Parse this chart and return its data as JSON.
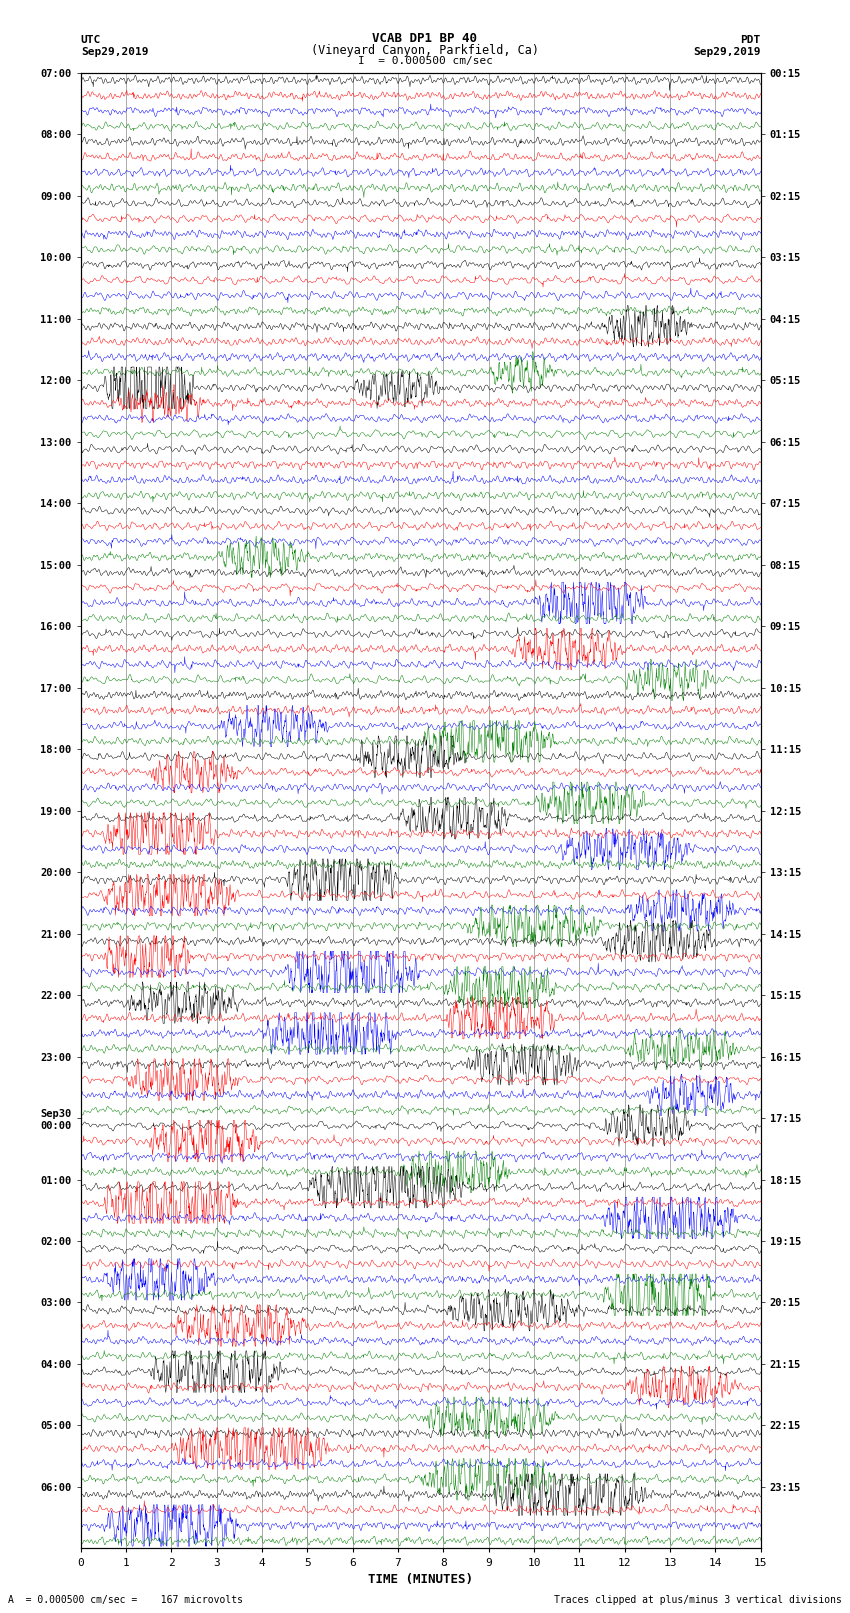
{
  "title_line1": "VCAB DP1 BP 40",
  "title_line2": "(Vineyard Canyon, Parkfield, Ca)",
  "scale_label": "I  = 0.000500 cm/sec",
  "label_utc": "UTC",
  "label_pdt": "PDT",
  "date_left": "Sep29,2019",
  "date_right": "Sep29,2019",
  "xlabel": "TIME (MINUTES)",
  "footer_left": "A  = 0.000500 cm/sec =    167 microvolts",
  "footer_right": "Traces clipped at plus/minus 3 vertical divisions",
  "background_color": "#ffffff",
  "colors": [
    "black",
    "red",
    "blue",
    "green"
  ],
  "xlim": [
    0,
    15
  ],
  "xlabel_ticks": [
    0,
    1,
    2,
    3,
    4,
    5,
    6,
    7,
    8,
    9,
    10,
    11,
    12,
    13,
    14,
    15
  ],
  "utc_times": [
    "07:00",
    "08:00",
    "09:00",
    "10:00",
    "11:00",
    "12:00",
    "13:00",
    "14:00",
    "15:00",
    "16:00",
    "17:00",
    "18:00",
    "19:00",
    "20:00",
    "21:00",
    "22:00",
    "23:00",
    "Sep30\n00:00",
    "01:00",
    "02:00",
    "03:00",
    "04:00",
    "05:00",
    "06:00"
  ],
  "pdt_times": [
    "00:15",
    "01:15",
    "02:15",
    "03:15",
    "04:15",
    "05:15",
    "06:15",
    "07:15",
    "08:15",
    "09:15",
    "10:15",
    "11:15",
    "12:15",
    "13:15",
    "14:15",
    "15:15",
    "16:15",
    "17:15",
    "18:15",
    "19:15",
    "20:15",
    "21:15",
    "22:15",
    "23:15"
  ],
  "n_hours": 24,
  "noise_amp": 0.12,
  "event_base_amp": 0.45,
  "seismic_events": [
    {
      "hour": 4,
      "trace": 0,
      "ms": 11.5,
      "me": 13.5,
      "amp": 1.8
    },
    {
      "hour": 4,
      "trace": 3,
      "ms": 9.0,
      "me": 10.5,
      "amp": 1.4
    },
    {
      "hour": 5,
      "trace": 0,
      "ms": 0.5,
      "me": 2.5,
      "amp": 4.5
    },
    {
      "hour": 5,
      "trace": 0,
      "ms": 6.0,
      "me": 8.0,
      "amp": 1.5
    },
    {
      "hour": 5,
      "trace": 1,
      "ms": 0.8,
      "me": 2.8,
      "amp": 1.2
    },
    {
      "hour": 7,
      "trace": 3,
      "ms": 3.0,
      "me": 5.0,
      "amp": 1.6
    },
    {
      "hour": 8,
      "trace": 2,
      "ms": 10.0,
      "me": 12.5,
      "amp": 2.5
    },
    {
      "hour": 9,
      "trace": 1,
      "ms": 9.5,
      "me": 12.0,
      "amp": 1.8
    },
    {
      "hour": 9,
      "trace": 3,
      "ms": 12.0,
      "me": 14.0,
      "amp": 1.5
    },
    {
      "hour": 10,
      "trace": 2,
      "ms": 3.0,
      "me": 5.5,
      "amp": 1.6
    },
    {
      "hour": 10,
      "trace": 3,
      "ms": 7.5,
      "me": 10.5,
      "amp": 2.5
    },
    {
      "hour": 11,
      "trace": 1,
      "ms": 1.5,
      "me": 3.5,
      "amp": 1.8
    },
    {
      "hour": 11,
      "trace": 0,
      "ms": 6.0,
      "me": 8.5,
      "amp": 2.0
    },
    {
      "hour": 11,
      "trace": 3,
      "ms": 10.0,
      "me": 12.5,
      "amp": 2.2
    },
    {
      "hour": 12,
      "trace": 1,
      "ms": 0.5,
      "me": 3.0,
      "amp": 2.5
    },
    {
      "hour": 12,
      "trace": 0,
      "ms": 7.0,
      "me": 9.5,
      "amp": 2.0
    },
    {
      "hour": 12,
      "trace": 2,
      "ms": 10.5,
      "me": 13.5,
      "amp": 1.8
    },
    {
      "hour": 13,
      "trace": 1,
      "ms": 0.5,
      "me": 3.5,
      "amp": 2.2
    },
    {
      "hour": 13,
      "trace": 0,
      "ms": 4.5,
      "me": 7.0,
      "amp": 2.8
    },
    {
      "hour": 13,
      "trace": 3,
      "ms": 8.5,
      "me": 11.5,
      "amp": 2.0
    },
    {
      "hour": 13,
      "trace": 2,
      "ms": 12.0,
      "me": 14.5,
      "amp": 1.8
    },
    {
      "hour": 14,
      "trace": 1,
      "ms": 0.5,
      "me": 2.5,
      "amp": 2.5
    },
    {
      "hour": 14,
      "trace": 2,
      "ms": 4.5,
      "me": 7.5,
      "amp": 3.0
    },
    {
      "hour": 14,
      "trace": 3,
      "ms": 8.0,
      "me": 10.5,
      "amp": 2.2
    },
    {
      "hour": 14,
      "trace": 0,
      "ms": 11.5,
      "me": 14.0,
      "amp": 1.8
    },
    {
      "hour": 15,
      "trace": 0,
      "ms": 1.0,
      "me": 3.5,
      "amp": 2.0
    },
    {
      "hour": 15,
      "trace": 2,
      "ms": 4.0,
      "me": 7.0,
      "amp": 2.8
    },
    {
      "hour": 15,
      "trace": 1,
      "ms": 8.0,
      "me": 10.5,
      "amp": 2.5
    },
    {
      "hour": 15,
      "trace": 3,
      "ms": 12.0,
      "me": 14.5,
      "amp": 1.6
    },
    {
      "hour": 16,
      "trace": 1,
      "ms": 1.0,
      "me": 3.5,
      "amp": 2.2
    },
    {
      "hour": 16,
      "trace": 0,
      "ms": 8.5,
      "me": 11.0,
      "amp": 2.0
    },
    {
      "hour": 16,
      "trace": 2,
      "ms": 12.5,
      "me": 14.5,
      "amp": 1.8
    },
    {
      "hour": 17,
      "trace": 1,
      "ms": 1.5,
      "me": 4.0,
      "amp": 2.5
    },
    {
      "hour": 17,
      "trace": 3,
      "ms": 7.0,
      "me": 9.5,
      "amp": 2.2
    },
    {
      "hour": 17,
      "trace": 0,
      "ms": 11.5,
      "me": 13.5,
      "amp": 1.8
    },
    {
      "hour": 18,
      "trace": 1,
      "ms": 0.5,
      "me": 3.5,
      "amp": 3.0
    },
    {
      "hour": 18,
      "trace": 0,
      "ms": 5.0,
      "me": 8.5,
      "amp": 2.5
    },
    {
      "hour": 18,
      "trace": 2,
      "ms": 11.5,
      "me": 14.5,
      "amp": 2.8
    },
    {
      "hour": 19,
      "trace": 2,
      "ms": 0.5,
      "me": 3.0,
      "amp": 2.2
    },
    {
      "hour": 19,
      "trace": 3,
      "ms": 11.5,
      "me": 14.0,
      "amp": 3.5
    },
    {
      "hour": 20,
      "trace": 1,
      "ms": 2.0,
      "me": 5.0,
      "amp": 2.0
    },
    {
      "hour": 20,
      "trace": 0,
      "ms": 8.0,
      "me": 11.0,
      "amp": 1.8
    },
    {
      "hour": 21,
      "trace": 0,
      "ms": 1.5,
      "me": 4.5,
      "amp": 2.5
    },
    {
      "hour": 21,
      "trace": 3,
      "ms": 7.5,
      "me": 10.5,
      "amp": 2.0
    },
    {
      "hour": 21,
      "trace": 1,
      "ms": 12.0,
      "me": 14.5,
      "amp": 1.8
    },
    {
      "hour": 22,
      "trace": 1,
      "ms": 2.0,
      "me": 5.5,
      "amp": 2.5
    },
    {
      "hour": 22,
      "trace": 3,
      "ms": 7.5,
      "me": 10.5,
      "amp": 2.2
    },
    {
      "hour": 23,
      "trace": 2,
      "ms": 0.5,
      "me": 3.5,
      "amp": 2.8
    },
    {
      "hour": 23,
      "trace": 0,
      "ms": 9.0,
      "me": 12.5,
      "amp": 2.5
    }
  ]
}
